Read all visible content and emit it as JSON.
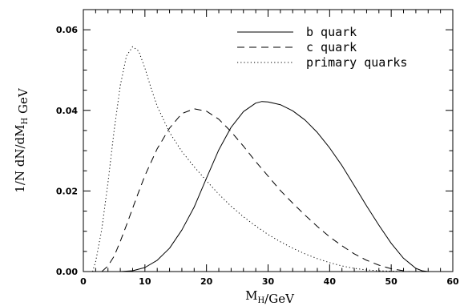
{
  "chart_data": {
    "type": "line",
    "xlabel": "M_H/GeV",
    "ylabel": "1/N dN/dM_H GeV",
    "xlim": [
      0,
      60
    ],
    "ylim": [
      0,
      0.065
    ],
    "xticks": [
      0,
      10,
      20,
      30,
      40,
      50,
      60
    ],
    "xtick_labels": [
      "0",
      "10",
      "20",
      "30",
      "40",
      "50",
      "60"
    ],
    "yticks": [
      0,
      0.02,
      0.04,
      0.06
    ],
    "ytick_labels": [
      "0.00",
      "0.02",
      "0.04",
      "0.06"
    ],
    "grid": false,
    "legend_position": "top-right",
    "series": [
      {
        "name": "b quark",
        "style": "solid",
        "x": [
          4,
          6,
          8,
          10,
          12,
          14,
          16,
          18,
          20,
          22,
          24,
          26,
          28,
          29,
          30,
          32,
          34,
          36,
          38,
          40,
          42,
          44,
          46,
          48,
          50,
          52,
          54,
          55,
          56
        ],
        "y": [
          0.0,
          0.0,
          0.0002,
          0.001,
          0.0028,
          0.0058,
          0.0103,
          0.016,
          0.0232,
          0.0302,
          0.0358,
          0.0397,
          0.0418,
          0.0422,
          0.0421,
          0.0414,
          0.0399,
          0.0376,
          0.0345,
          0.0307,
          0.0263,
          0.0213,
          0.0163,
          0.0115,
          0.007,
          0.0033,
          0.0008,
          0.0002,
          0.0
        ]
      },
      {
        "name": "c quark",
        "style": "dashed",
        "x": [
          3,
          4,
          5,
          6,
          7,
          8,
          9,
          10,
          12,
          14,
          16,
          18,
          20,
          22,
          24,
          26,
          28,
          30,
          32,
          34,
          36,
          38,
          40,
          42,
          44,
          46,
          48,
          50,
          52,
          53
        ],
        "y": [
          0.0,
          0.0014,
          0.0038,
          0.0075,
          0.0115,
          0.0157,
          0.0198,
          0.0238,
          0.0305,
          0.0356,
          0.0392,
          0.0404,
          0.0398,
          0.0378,
          0.0347,
          0.0311,
          0.0273,
          0.0237,
          0.0201,
          0.017,
          0.014,
          0.0112,
          0.0086,
          0.0064,
          0.0044,
          0.0028,
          0.0016,
          0.0007,
          0.0002,
          0.0
        ]
      },
      {
        "name": "primary quarks",
        "style": "dotted",
        "x": [
          1.5,
          2,
          3,
          4,
          5,
          6,
          7,
          8,
          9,
          10,
          11,
          12,
          14,
          16,
          18,
          20,
          22,
          24,
          26,
          28,
          30,
          32,
          34,
          36,
          38,
          40,
          42,
          44,
          46,
          48,
          50,
          52
        ],
        "y": [
          0.0,
          0.0025,
          0.0105,
          0.022,
          0.035,
          0.0462,
          0.0535,
          0.0558,
          0.0547,
          0.0505,
          0.0455,
          0.041,
          0.0345,
          0.0298,
          0.026,
          0.0225,
          0.0192,
          0.0162,
          0.0136,
          0.0113,
          0.0092,
          0.0074,
          0.0058,
          0.0044,
          0.0032,
          0.0022,
          0.0014,
          0.0008,
          0.0004,
          0.0002,
          0.0001,
          0.0
        ]
      }
    ]
  }
}
